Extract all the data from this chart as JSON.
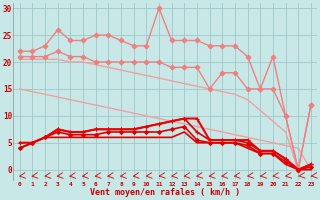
{
  "background_color": "#c8e8e8",
  "grid_color": "#a0c8c8",
  "xlabel": "Vent moyen/en rafales ( km/h )",
  "xlim": [
    -0.5,
    23.5
  ],
  "ylim": [
    -2,
    31
  ],
  "yticks": [
    0,
    5,
    10,
    15,
    20,
    25,
    30
  ],
  "xticks": [
    0,
    1,
    2,
    3,
    4,
    5,
    6,
    7,
    8,
    9,
    10,
    11,
    12,
    13,
    14,
    15,
    16,
    17,
    18,
    19,
    20,
    21,
    22,
    23
  ],
  "series": [
    {
      "label": "diag_line1",
      "y": [
        15.0,
        14.5,
        14.0,
        13.5,
        13.0,
        12.5,
        12.0,
        11.5,
        11.0,
        10.5,
        10.0,
        9.5,
        9.0,
        8.5,
        8.0,
        7.5,
        7.0,
        6.5,
        6.0,
        5.5,
        5.0,
        4.5,
        4.0,
        0.0
      ],
      "color": "#f0a0a0",
      "linewidth": 1.0,
      "marker": null,
      "linestyle": "-"
    },
    {
      "label": "diag_line2",
      "y": [
        20.5,
        20.5,
        20.5,
        20.5,
        20.0,
        20.0,
        19.5,
        19.0,
        18.5,
        18.0,
        17.5,
        17.0,
        16.5,
        16.0,
        15.5,
        15.0,
        14.5,
        14.0,
        13.0,
        11.0,
        9.0,
        7.0,
        0.0,
        null
      ],
      "color": "#f0a0a0",
      "linewidth": 1.0,
      "marker": null,
      "linestyle": "-"
    },
    {
      "label": "jagged_low",
      "y": [
        21,
        21,
        21,
        22,
        21,
        21,
        20,
        20,
        20,
        20,
        20,
        20,
        19,
        19,
        19,
        15,
        18,
        18,
        15,
        15,
        15,
        10,
        0,
        12
      ],
      "color": "#f08080",
      "linewidth": 1.0,
      "marker": "D",
      "markersize": 2.5,
      "linestyle": "-"
    },
    {
      "label": "jagged_high",
      "y": [
        22,
        22,
        23,
        26,
        24,
        24,
        25,
        25,
        24,
        23,
        23,
        30,
        24,
        24,
        24,
        23,
        23,
        23,
        21,
        15,
        21,
        10,
        0,
        12
      ],
      "color": "#f08080",
      "linewidth": 1.0,
      "marker": "D",
      "markersize": 2.5,
      "linestyle": "-"
    },
    {
      "label": "red_lower",
      "y": [
        4,
        5,
        6,
        6,
        6,
        6,
        6,
        6,
        6,
        6,
        6,
        6,
        6,
        7,
        5,
        5,
        5,
        5,
        4,
        3,
        3,
        1,
        0,
        0
      ],
      "color": "#dd0000",
      "linewidth": 1.2,
      "marker": null,
      "linestyle": "-"
    },
    {
      "label": "red_mid1",
      "y": [
        4,
        5,
        6,
        7,
        6.5,
        6.5,
        6.5,
        7,
        7,
        7,
        7,
        7,
        7.5,
        8,
        5.5,
        5,
        5,
        5,
        4.5,
        3,
        3,
        1.5,
        0,
        0.5
      ],
      "color": "#dd0000",
      "linewidth": 1.2,
      "marker": "D",
      "markersize": 2,
      "linestyle": "-"
    },
    {
      "label": "red_mid2",
      "y": [
        4,
        5,
        6,
        7.5,
        7,
        7,
        7.5,
        7.5,
        7.5,
        7.5,
        8,
        8.5,
        9,
        9.5,
        7,
        5.5,
        5.5,
        5.5,
        5,
        3.5,
        3.5,
        2,
        0,
        1
      ],
      "color": "#dd0000",
      "linewidth": 1.2,
      "marker": "+",
      "markersize": 3.5,
      "linestyle": "-"
    },
    {
      "label": "red_top",
      "y": [
        5,
        5,
        6,
        7.5,
        7,
        7,
        7.5,
        7.5,
        7.5,
        7.5,
        8,
        8.5,
        9,
        9.5,
        9.5,
        5.5,
        5.5,
        5.5,
        5.5,
        3.5,
        3.5,
        2,
        0,
        1
      ],
      "color": "#ee0000",
      "linewidth": 1.5,
      "marker": "+",
      "markersize": 3.5,
      "linestyle": "-"
    }
  ],
  "arrow_angles": [
    210,
    200,
    210,
    195,
    190,
    190,
    195,
    190,
    195,
    200,
    210,
    220,
    215,
    210,
    205,
    200,
    195,
    190,
    215,
    220,
    215,
    215,
    230,
    225
  ]
}
